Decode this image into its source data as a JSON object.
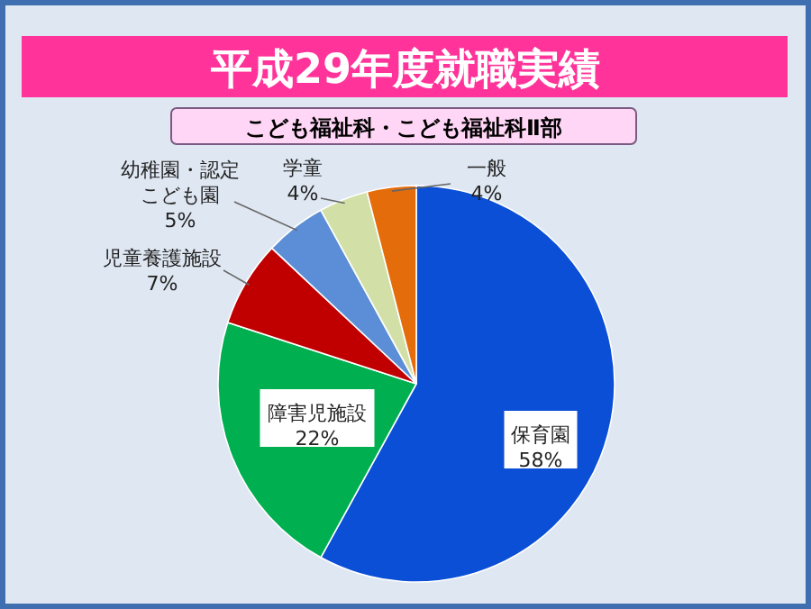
{
  "chart_data": {
    "type": "pie",
    "title": "平成29年度就職実績",
    "subtitle": "こども福祉科・こども福祉科Ⅱ部",
    "categories": [
      "保育園",
      "障害児施設",
      "児童養護施設",
      "幼稚園・認定こども園",
      "学童",
      "一般"
    ],
    "values": [
      58,
      22,
      7,
      5,
      4,
      4
    ],
    "colors": [
      "#0a4fd6",
      "#00b050",
      "#c00000",
      "#5b8ed6",
      "#d2e0a8",
      "#e46c0a"
    ],
    "value_labels": [
      "58%",
      "22%",
      "7%",
      "5%",
      "4%",
      "4%"
    ]
  }
}
